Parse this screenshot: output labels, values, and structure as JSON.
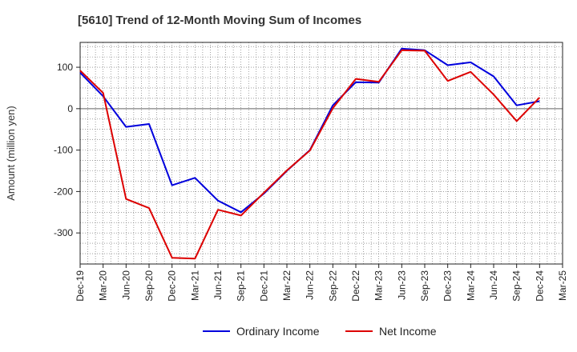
{
  "chart_data": {
    "type": "line",
    "title": "[5610]  Trend of 12-Month Moving Sum of Incomes",
    "xlabel": "",
    "ylabel": "Amount (million yen)",
    "ylim": [
      -375,
      160
    ],
    "yticks": [
      100,
      0,
      -100,
      -200,
      -300
    ],
    "categories": [
      "Dec-19",
      "Mar-20",
      "Jun-20",
      "Sep-20",
      "Dec-20",
      "Mar-21",
      "Jun-21",
      "Sep-21",
      "Dec-21",
      "Mar-22",
      "Jun-22",
      "Sep-22",
      "Dec-22",
      "Mar-23",
      "Jun-23",
      "Sep-23",
      "Dec-23",
      "Mar-24",
      "Jun-24",
      "Sep-24",
      "Dec-24",
      "Mar-25"
    ],
    "grid": true,
    "legend_position": "bottom",
    "series": [
      {
        "name": "Ordinary Income",
        "color": "#0000dd",
        "values": [
          87,
          30,
          -44,
          -37,
          -185,
          -167,
          -222,
          -250,
          -205,
          -150,
          -100,
          8,
          64,
          63,
          145,
          141,
          105,
          112,
          78,
          8,
          18,
          null
        ]
      },
      {
        "name": "Net Income",
        "color": "#dd0000",
        "values": [
          92,
          38,
          -218,
          -240,
          -360,
          -362,
          -244,
          -258,
          -203,
          -149,
          -101,
          1,
          72,
          65,
          141,
          140,
          67,
          89,
          34,
          -30,
          27,
          null
        ]
      }
    ]
  }
}
